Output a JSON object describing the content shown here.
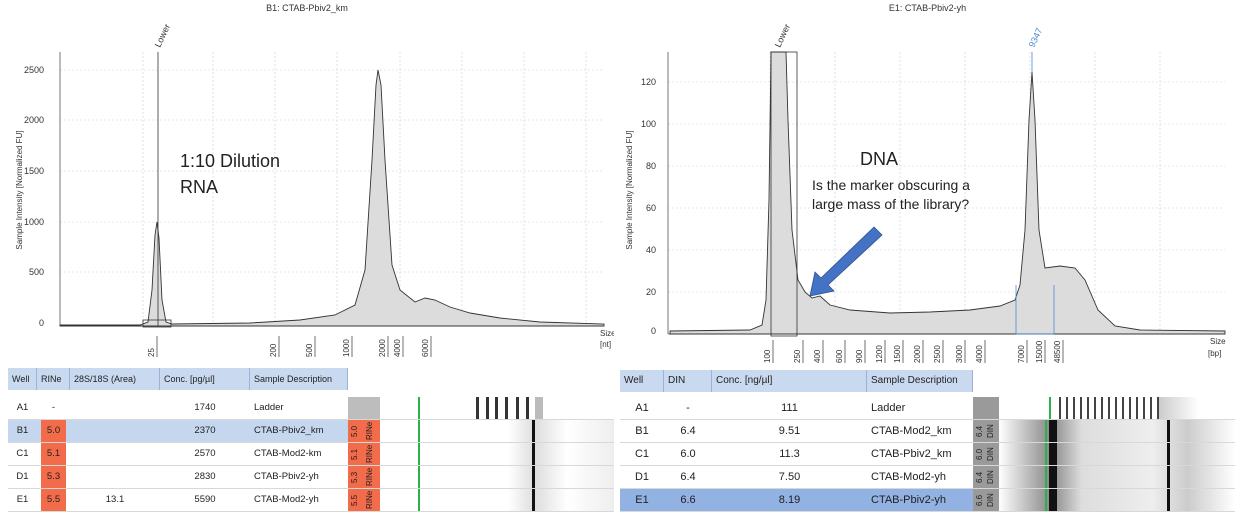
{
  "left": {
    "title": "B1: CTAB-Pbiv2_km",
    "y_axis_label": "Sample Intensity [Normalized FU]",
    "y_ticks": [
      "2500",
      "2000",
      "1500",
      "1000",
      "500",
      "0"
    ],
    "x_ticks": [
      "25",
      "200",
      "500",
      "1000",
      "2000",
      "4000",
      "6000"
    ],
    "x_unit_1": "Size",
    "x_unit_2": "[nt]",
    "marker_label": "Lower",
    "annotation_line1": "1:10 Dilution",
    "annotation_line2": "RNA",
    "table": {
      "headers": [
        "Well",
        "RINe",
        "28S/18S (Area)",
        "Conc. [pg/µl]",
        "Sample Description"
      ],
      "rows": [
        {
          "well": "A1",
          "score": "-",
          "ratio": "",
          "conc": "1740",
          "desc": "Ladder",
          "tag": "",
          "tag_label": ""
        },
        {
          "well": "B1",
          "score": "5.0",
          "ratio": "",
          "conc": "2370",
          "desc": "CTAB-Pbiv2_km",
          "tag": "5.0",
          "tag_label": "RINe"
        },
        {
          "well": "C1",
          "score": "5.1",
          "ratio": "",
          "conc": "2570",
          "desc": "CTAB-Mod2-km",
          "tag": "5.1",
          "tag_label": "RINe"
        },
        {
          "well": "D1",
          "score": "5.3",
          "ratio": "",
          "conc": "2830",
          "desc": "CTAB-Pbiv2-yh",
          "tag": "5.3",
          "tag_label": "RINe"
        },
        {
          "well": "E1",
          "score": "5.5",
          "ratio": "13.1",
          "conc": "5590",
          "desc": "CTAB-Mod2-yh",
          "tag": "5.5",
          "tag_label": "RINe"
        }
      ]
    }
  },
  "right": {
    "title": "E1: CTAB-Pbiv2-yh",
    "y_axis_label": "Sample Intensity [Normalized FU]",
    "y_ticks": [
      "120",
      "100",
      "80",
      "60",
      "40",
      "20",
      "0"
    ],
    "x_ticks": [
      "100",
      "250",
      "400",
      "600",
      "900",
      "1200",
      "1500",
      "2000",
      "2500",
      "3000",
      "4000",
      "7000",
      "15000",
      "48500"
    ],
    "x_unit_1": "Size",
    "x_unit_2": "[bp]",
    "marker_label": "Lower",
    "peak_label": "9347",
    "annotation_title": "DNA",
    "annotation_line1": "Is the marker obscuring a",
    "annotation_line2": "large mass of the library?",
    "table": {
      "headers": [
        "Well",
        "DIN",
        "Conc. [ng/µl]",
        "Sample Description"
      ],
      "rows": [
        {
          "well": "A1",
          "score": "-",
          "conc": "111",
          "desc": "Ladder",
          "tag": "",
          "tag_label": ""
        },
        {
          "well": "B1",
          "score": "6.4",
          "conc": "9.51",
          "desc": "CTAB-Mod2_km",
          "tag": "6.4",
          "tag_label": "DIN"
        },
        {
          "well": "C1",
          "score": "6.0",
          "conc": "11.3",
          "desc": "CTAB-Pbiv2_km",
          "tag": "6.0",
          "tag_label": "DIN"
        },
        {
          "well": "D1",
          "score": "6.4",
          "conc": "7.50",
          "desc": "CTAB-Mod2-yh",
          "tag": "6.4",
          "tag_label": "DIN"
        },
        {
          "well": "E1",
          "score": "6.6",
          "conc": "8.19",
          "desc": "CTAB-Pbiv2-yh",
          "tag": "6.6",
          "tag_label": "DIN"
        }
      ]
    }
  },
  "colors": {
    "fill": "#dcdcdc",
    "line": "#333333",
    "rin": "#f26b4a",
    "header": "#c9d9ef",
    "marker_blue": "#4a8ad4",
    "arrow": "#4472c4"
  }
}
